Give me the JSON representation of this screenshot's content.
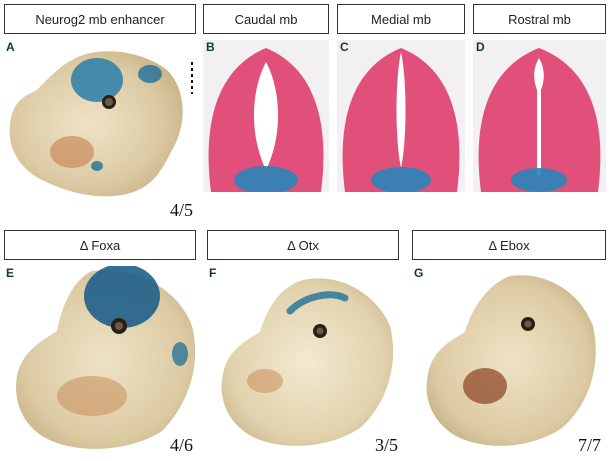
{
  "row1": {
    "headers": [
      "Neurog2 mb enhancer",
      "Caudal mb",
      "Medial mb",
      "Rostral mb"
    ],
    "labels": [
      "A",
      "B",
      "C",
      "D"
    ],
    "count_a": "4/5"
  },
  "row2": {
    "headers": [
      "Δ Foxa",
      "Δ Otx",
      "Δ Ebox"
    ],
    "labels": [
      "E",
      "F",
      "G"
    ],
    "counts": [
      "4/6",
      "3/5",
      "7/7"
    ]
  },
  "colors": {
    "xgal_blue": "#1e6f9a",
    "eosin_pink": "#e0507a",
    "embryo_beige": "#d9c9a3"
  }
}
